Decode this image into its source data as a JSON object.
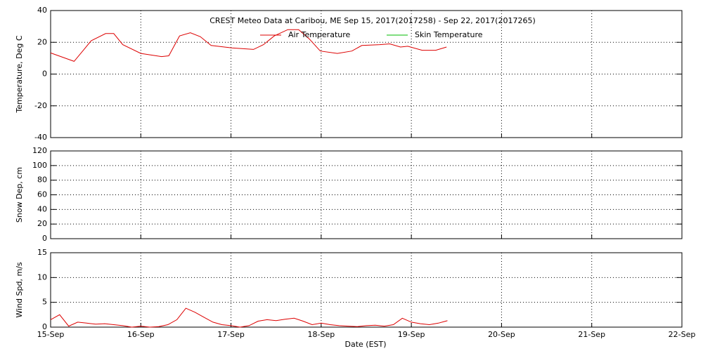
{
  "chart_data": [
    {
      "type": "line",
      "title": "CREST Meteo Data at Caribou, ME   Sep 15, 2017(2017258) - Sep 22, 2017(2017265)",
      "ylabel": "Temperature, Deg C",
      "ylim": [
        -40,
        40
      ],
      "yticks": [
        -40,
        -20,
        0,
        20,
        40
      ],
      "grid": true,
      "x": [
        0,
        0.26,
        0.37,
        0.45,
        0.61,
        0.7,
        0.8,
        1.0,
        1.23,
        1.31,
        1.43,
        1.55,
        1.66,
        1.78,
        2.01,
        2.25,
        2.36,
        2.48,
        2.63,
        2.75,
        2.87,
        2.99,
        3.18,
        3.34,
        3.45,
        3.65,
        3.76,
        3.88,
        3.96,
        4.12,
        4.27,
        4.39
      ],
      "series": [
        {
          "name": "Air Temperature",
          "color": "#dd0000",
          "values": [
            13.3,
            8,
            15.5,
            21,
            25.5,
            25.5,
            18.5,
            13,
            11,
            11.5,
            24,
            26,
            23.5,
            18,
            16.5,
            15.5,
            18.5,
            24,
            28,
            28,
            22,
            14.5,
            13,
            14.5,
            18,
            18.5,
            19,
            17,
            17.5,
            15,
            15,
            17
          ]
        },
        {
          "name": "Skin Temperature",
          "color": "#00bb00",
          "values": [
            null,
            null,
            null,
            null,
            null,
            null,
            null,
            null,
            null,
            null,
            null,
            null,
            null,
            null,
            null,
            null,
            null,
            null,
            null,
            null,
            null,
            null,
            null,
            null,
            null,
            null,
            null,
            null,
            null,
            null,
            null,
            null
          ]
        }
      ]
    },
    {
      "type": "line",
      "ylabel": "Snow Dep, cm",
      "ylim": [
        0,
        120
      ],
      "yticks": [
        0,
        20,
        40,
        60,
        80,
        100,
        120
      ],
      "grid": true
    },
    {
      "type": "line",
      "ylabel": "Wind Spd, m/s",
      "xlabel": "Date (EST)",
      "ylim": [
        0,
        15
      ],
      "yticks": [
        0,
        5,
        10,
        15
      ],
      "grid": true,
      "xlim": [
        0,
        7
      ],
      "xticks": [
        {
          "value": 0,
          "label": "15-Sep"
        },
        {
          "value": 1,
          "label": "16-Sep"
        },
        {
          "value": 2,
          "label": "17-Sep"
        },
        {
          "value": 3,
          "label": "18-Sep"
        },
        {
          "value": 4,
          "label": "19-Sep"
        },
        {
          "value": 5,
          "label": "20-Sep"
        },
        {
          "value": 6,
          "label": "21-Sep"
        },
        {
          "value": 7,
          "label": "22-Sep"
        }
      ],
      "x": [
        0,
        0.1,
        0.2,
        0.3,
        0.4,
        0.5,
        0.6,
        0.7,
        0.8,
        0.9,
        1.0,
        1.1,
        1.2,
        1.3,
        1.4,
        1.5,
        1.6,
        1.7,
        1.8,
        1.9,
        2.0,
        2.1,
        2.2,
        2.3,
        2.4,
        2.5,
        2.6,
        2.7,
        2.8,
        2.9,
        3.0,
        3.1,
        3.2,
        3.3,
        3.4,
        3.5,
        3.6,
        3.7,
        3.8,
        3.9,
        4.0,
        4.1,
        4.2,
        4.3,
        4.4
      ],
      "series": [
        {
          "color": "#dd0000",
          "values": [
            1.5,
            2.5,
            0.2,
            1,
            0.8,
            0.6,
            0.7,
            0.5,
            0.3,
            0,
            0.2,
            0,
            0.1,
            0.5,
            1.5,
            3.8,
            3,
            2,
            1,
            0.5,
            0.3,
            0,
            0.3,
            1.2,
            1.5,
            1.3,
            1.6,
            1.8,
            1.2,
            0.5,
            0.8,
            0.5,
            0.3,
            0.2,
            0.1,
            0.3,
            0.4,
            0.2,
            0.5,
            1.8,
            1.0,
            0.7,
            0.5,
            0.8,
            1.3
          ]
        }
      ]
    }
  ]
}
